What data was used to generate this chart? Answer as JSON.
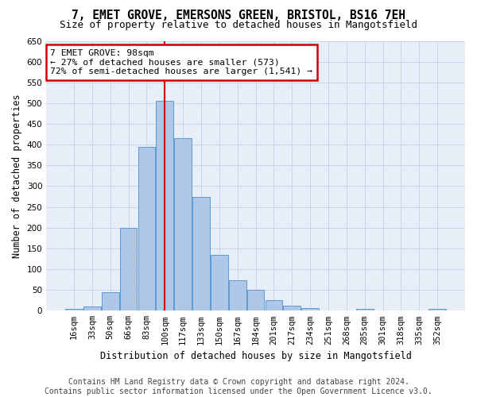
{
  "title_line1": "7, EMET GROVE, EMERSONS GREEN, BRISTOL, BS16 7EH",
  "title_line2": "Size of property relative to detached houses in Mangotsfield",
  "xlabel": "Distribution of detached houses by size in Mangotsfield",
  "ylabel": "Number of detached properties",
  "categories": [
    "16sqm",
    "33sqm",
    "50sqm",
    "66sqm",
    "83sqm",
    "100sqm",
    "117sqm",
    "133sqm",
    "150sqm",
    "167sqm",
    "184sqm",
    "201sqm",
    "217sqm",
    "234sqm",
    "251sqm",
    "268sqm",
    "285sqm",
    "301sqm",
    "318sqm",
    "335sqm",
    "352sqm"
  ],
  "values": [
    5,
    10,
    45,
    200,
    395,
    505,
    415,
    275,
    135,
    73,
    50,
    25,
    12,
    7,
    0,
    0,
    5,
    0,
    0,
    0,
    5
  ],
  "bar_color": "#aec6e8",
  "bar_edge_color": "#5b9bd5",
  "highlight_index": 5,
  "highlight_color": "#cc0000",
  "annotation_text": "7 EMET GROVE: 98sqm\n← 27% of detached houses are smaller (573)\n72% of semi-detached houses are larger (1,541) →",
  "annotation_box_color": "#ffffff",
  "annotation_box_edge": "#cc0000",
  "ylim": [
    0,
    650
  ],
  "yticks": [
    0,
    50,
    100,
    150,
    200,
    250,
    300,
    350,
    400,
    450,
    500,
    550,
    600,
    650
  ],
  "grid_color": "#c8d4e8",
  "background_color": "#e8eef8",
  "footer_line1": "Contains HM Land Registry data © Crown copyright and database right 2024.",
  "footer_line2": "Contains public sector information licensed under the Open Government Licence v3.0.",
  "title_fontsize": 10.5,
  "subtitle_fontsize": 9.0,
  "xlabel_fontsize": 8.5,
  "ylabel_fontsize": 8.5,
  "tick_fontsize": 7.5,
  "annotation_fontsize": 8.2,
  "footer_fontsize": 7.0
}
